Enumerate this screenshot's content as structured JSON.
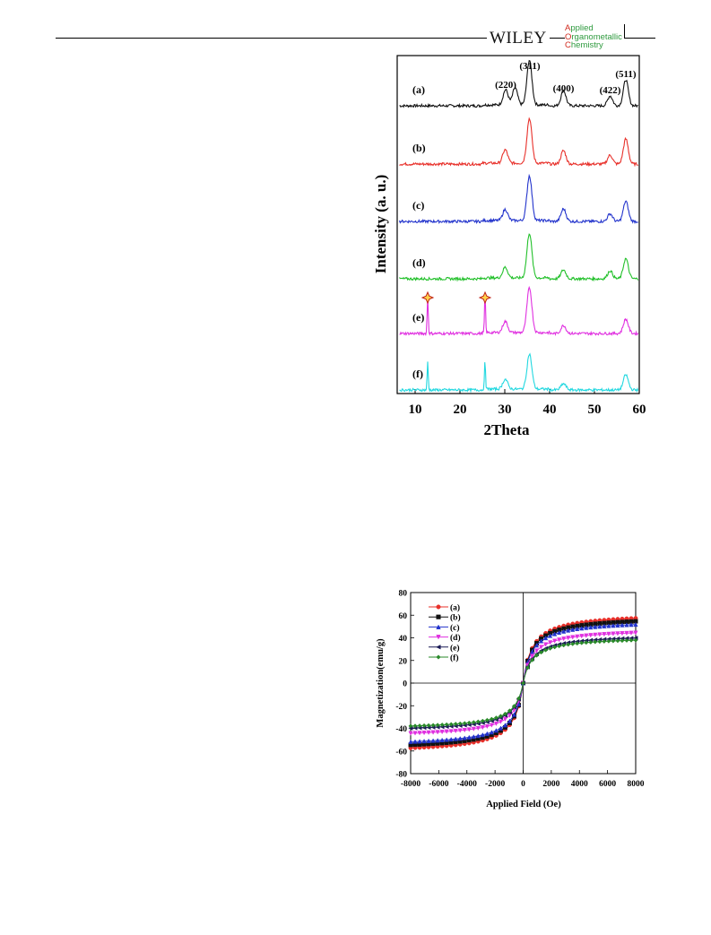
{
  "header": {
    "publisher": "WILEY",
    "journal_lines": [
      "Applied",
      "Organometallic",
      "Chemistry"
    ]
  },
  "figures": [
    {
      "chart_data": {
        "type": "line",
        "title": "",
        "xlabel": "2Theta",
        "ylabel": "Intensity (a. u.)",
        "xlim": [
          6,
          60
        ],
        "x_ticks": [
          10,
          20,
          30,
          40,
          50,
          60
        ],
        "x_tick_labels": [
          "10",
          "20",
          "30",
          "40",
          "50",
          "60"
        ],
        "grid": false,
        "legend": "none",
        "series": [
          {
            "name": "(a)",
            "color": "#111111",
            "peaks": [
              [
                30.2,
                0.34
              ],
              [
                32.3,
                0.38
              ],
              [
                35.5,
                1.0
              ],
              [
                43.1,
                0.34
              ],
              [
                53.5,
                0.22
              ],
              [
                57.0,
                0.58
              ]
            ]
          },
          {
            "name": "(b)",
            "color": "#e8302a",
            "peaks": [
              [
                30.1,
                0.3
              ],
              [
                35.5,
                1.0
              ],
              [
                43.1,
                0.3
              ],
              [
                53.5,
                0.2
              ],
              [
                57.0,
                0.56
              ]
            ]
          },
          {
            "name": "(c)",
            "color": "#2233cc",
            "peaks": [
              [
                30.1,
                0.25
              ],
              [
                35.5,
                1.0
              ],
              [
                43.1,
                0.28
              ],
              [
                53.5,
                0.17
              ],
              [
                57.0,
                0.45
              ]
            ]
          },
          {
            "name": "(d)",
            "color": "#22c02a",
            "peaks": [
              [
                30.1,
                0.24
              ],
              [
                35.5,
                1.0
              ],
              [
                43.1,
                0.2
              ],
              [
                53.5,
                0.18
              ],
              [
                57.0,
                0.45
              ]
            ]
          },
          {
            "name": "(e)",
            "color": "#e030e0",
            "peaks": [
              [
                12.8,
                0.85
              ],
              [
                25.6,
                0.85
              ],
              [
                30.1,
                0.25
              ],
              [
                35.5,
                1.0
              ],
              [
                43.1,
                0.18
              ],
              [
                57.0,
                0.32
              ]
            ]
          },
          {
            "name": "(f)",
            "color": "#22d8e0",
            "peaks": [
              [
                12.8,
                0.62
              ],
              [
                25.6,
                0.62
              ],
              [
                30.1,
                0.22
              ],
              [
                35.5,
                0.78
              ],
              [
                43.1,
                0.14
              ],
              [
                57.0,
                0.34
              ]
            ]
          }
        ],
        "annotations": [
          {
            "text": "(220)",
            "x": 30.2
          },
          {
            "text": "(311)",
            "x": 35.6
          },
          {
            "text": "(400)",
            "x": 43.1
          },
          {
            "text": "(422)",
            "x": 53.5
          },
          {
            "text": "(511)",
            "x": 57.0
          }
        ],
        "markers": [
          {
            "symbol": "star",
            "x": 12.8,
            "series": "(e)"
          },
          {
            "symbol": "star",
            "x": 25.6,
            "series": "(e)"
          }
        ]
      }
    },
    {
      "chart_data": {
        "type": "line",
        "title": "",
        "xlabel": "Applied Field (Oe)",
        "ylabel": "Magnetization(emu/g)",
        "xlim": [
          -8000,
          8000
        ],
        "ylim": [
          -80,
          80
        ],
        "x_ticks": [
          -8000,
          -6000,
          -4000,
          -2000,
          0,
          2000,
          4000,
          6000,
          8000
        ],
        "x_tick_labels": [
          "-8000",
          "-6000",
          "-4000",
          "-2000",
          "0",
          "2000",
          "4000",
          "6000",
          "8000"
        ],
        "y_ticks": [
          -80,
          -60,
          -40,
          -20,
          0,
          20,
          40,
          60,
          80
        ],
        "y_tick_labels": [
          "-80",
          "-60",
          "-40",
          "-20",
          "0",
          "20",
          "40",
          "60",
          "80"
        ],
        "grid": false,
        "legend": "top-left",
        "series": [
          {
            "name": "(a)",
            "color": "#e8302a",
            "marker": "circle",
            "ms": 62
          },
          {
            "name": "(b)",
            "color": "#111111",
            "marker": "square",
            "ms": 59
          },
          {
            "name": "(c)",
            "color": "#2233cc",
            "marker": "triangle-up",
            "ms": 56
          },
          {
            "name": "(d)",
            "color": "#e030e0",
            "marker": "triangle-down",
            "ms": 48
          },
          {
            "name": "(e)",
            "color": "#1a1a55",
            "marker": "triangle-left",
            "ms": 43
          },
          {
            "name": "(f)",
            "color": "#2a8a2a",
            "marker": "diamond",
            "ms": 41
          }
        ]
      }
    }
  ]
}
